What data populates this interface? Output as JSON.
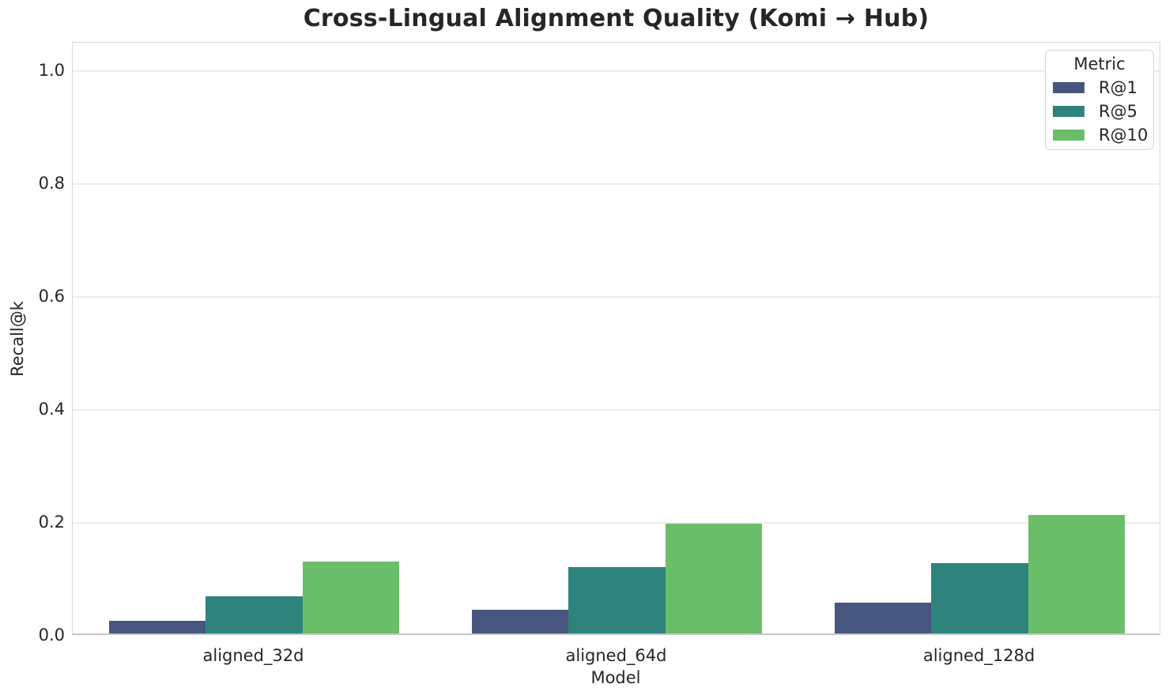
{
  "chart_data": {
    "type": "bar",
    "title": "Cross-Lingual Alignment Quality (Komi → Hub)",
    "xlabel": "Model",
    "ylabel": "Recall@k",
    "categories": [
      "aligned_32d",
      "aligned_64d",
      "aligned_128d"
    ],
    "series": [
      {
        "name": "R@1",
        "color": "#46567e",
        "values": [
          0.022,
          0.042,
          0.055
        ]
      },
      {
        "name": "R@5",
        "color": "#2e837d",
        "values": [
          0.066,
          0.118,
          0.125
        ]
      },
      {
        "name": "R@10",
        "color": "#6abe6a",
        "values": [
          0.127,
          0.194,
          0.21
        ]
      }
    ],
    "legend": {
      "title": "Metric",
      "position": "upper-right"
    },
    "ylim": [
      0,
      1.05
    ],
    "yticks": [
      "0.0",
      "0.2",
      "0.4",
      "0.6",
      "0.8",
      "1.0"
    ],
    "grid": true,
    "group_bar_fraction": 0.8
  },
  "style_colors": {
    "gridline": "#ececec",
    "spine": "#d9d9d9",
    "baseline": "#c6c6c6",
    "text": "#262626",
    "background": "#ffffff"
  }
}
